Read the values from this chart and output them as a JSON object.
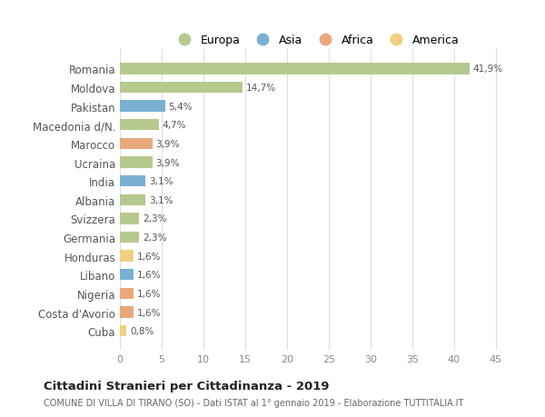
{
  "categories": [
    "Romania",
    "Moldova",
    "Pakistan",
    "Macedonia d/N.",
    "Marocco",
    "Ucraina",
    "India",
    "Albania",
    "Svizzera",
    "Germania",
    "Honduras",
    "Libano",
    "Nigeria",
    "Costa d'Avorio",
    "Cuba"
  ],
  "values": [
    41.9,
    14.7,
    5.4,
    4.7,
    3.9,
    3.9,
    3.1,
    3.1,
    2.3,
    2.3,
    1.6,
    1.6,
    1.6,
    1.6,
    0.8
  ],
  "labels": [
    "41,9%",
    "14,7%",
    "5,4%",
    "4,7%",
    "3,9%",
    "3,9%",
    "3,1%",
    "3,1%",
    "2,3%",
    "2,3%",
    "1,6%",
    "1,6%",
    "1,6%",
    "1,6%",
    "0,8%"
  ],
  "continent": [
    "Europa",
    "Europa",
    "Asia",
    "Europa",
    "Africa",
    "Europa",
    "Asia",
    "Europa",
    "Europa",
    "Europa",
    "America",
    "Asia",
    "Africa",
    "Africa",
    "America"
  ],
  "colors": {
    "Europa": "#b5c98e",
    "Asia": "#7bafd4",
    "Africa": "#e8a87c",
    "America": "#f0d080"
  },
  "legend_entries": [
    "Europa",
    "Asia",
    "Africa",
    "America"
  ],
  "legend_colors": [
    "#b5c98e",
    "#7bafd4",
    "#e8a87c",
    "#f0d080"
  ],
  "title": "Cittadini Stranieri per Cittadinanza - 2019",
  "subtitle": "COMUNE DI VILLA DI TIRANO (SO) - Dati ISTAT al 1° gennaio 2019 - Elaborazione TUTTITALIA.IT",
  "xlim": [
    0,
    47
  ],
  "xticks": [
    0,
    5,
    10,
    15,
    20,
    25,
    30,
    35,
    40,
    45
  ],
  "background_color": "#ffffff",
  "grid_color": "#dddddd"
}
